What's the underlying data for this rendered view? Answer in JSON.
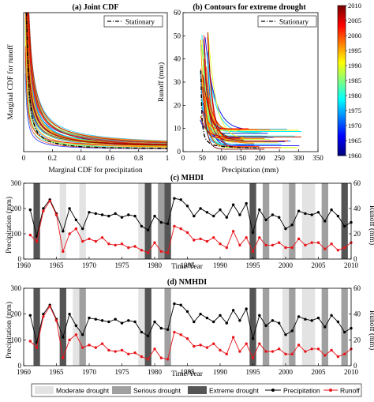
{
  "chart_data": [
    {
      "id": "a",
      "type": "line",
      "title": "(a) Joint CDF",
      "xlabel": "Marginal CDF for precipitation",
      "ylabel": "Marginal CDF for runoff",
      "xlim": [
        0,
        1
      ],
      "ylim": [
        0,
        1
      ],
      "xticks": [
        "0",
        "0.2",
        "0.4",
        "0.6",
        "0.8",
        "1"
      ],
      "yticks": [],
      "legend": {
        "position": "top-right",
        "entries": [
          "Stationary"
        ]
      },
      "series": [
        {
          "name": "Stationary",
          "style": "dash-dot",
          "x": [
            0.02,
            0.03,
            0.04,
            0.06,
            0.08,
            0.1,
            0.15,
            0.2,
            0.3,
            0.4,
            0.6,
            0.8,
            1.0
          ],
          "y": [
            1.0,
            0.62,
            0.4,
            0.24,
            0.17,
            0.13,
            0.085,
            0.065,
            0.045,
            0.035,
            0.028,
            0.025,
            0.024
          ]
        }
      ],
      "colormap_range": [
        1960,
        2010
      ],
      "curve_count": 50
    },
    {
      "id": "b",
      "type": "line",
      "title": "(b) Contours for extreme drought",
      "xlabel": "Precipitation (mm)",
      "ylabel": "Runoff (mm)",
      "xlim": [
        0,
        350
      ],
      "ylim": [
        0,
        60
      ],
      "xticks": [
        "0",
        "50",
        "100",
        "150",
        "200",
        "250",
        "300",
        "350"
      ],
      "yticks": [
        "0",
        "10",
        "20",
        "30",
        "40",
        "50",
        "60"
      ],
      "legend": {
        "position": "top-right",
        "entries": [
          "Stationary"
        ]
      },
      "series": [
        {
          "name": "Stationary",
          "style": "dash-dot",
          "x": [
            46,
            48,
            50,
            55,
            60,
            70,
            80,
            100,
            150,
            200
          ],
          "y": [
            35,
            20,
            12,
            7,
            5,
            3.5,
            2.8,
            2.2,
            1.8,
            1.6
          ]
        }
      ],
      "colorbar": {
        "min": 1960,
        "max": 2010,
        "ticks": [
          1960,
          1965,
          1970,
          1975,
          1980,
          1985,
          1990,
          1995,
          2000,
          2005,
          2010
        ]
      }
    },
    {
      "id": "c",
      "type": "line",
      "title": "(c) MHDI",
      "xlabel": "Time/Year",
      "ylabel": "Precipitation (mm)",
      "y2label": "Runoff (mm)",
      "xlim": [
        1960,
        2010
      ],
      "ylim": [
        0,
        300
      ],
      "y2lim": [
        0,
        60
      ],
      "xticks": [
        "1960",
        "1965",
        "1970",
        "1975",
        "1980",
        "1985",
        "1990",
        "1995",
        "2000",
        "2005",
        "2010"
      ],
      "yticks": [
        "0",
        "100",
        "200",
        "300"
      ],
      "y2ticks": [
        "0",
        "20",
        "40",
        "60"
      ],
      "drought_bands": [
        {
          "year": 1962,
          "level": "extreme"
        },
        {
          "year": 1966,
          "level": "moderate"
        },
        {
          "year": 1969,
          "level": "moderate"
        },
        {
          "year": 1978,
          "level": "moderate"
        },
        {
          "year": 1979,
          "level": "extreme"
        },
        {
          "year": 1981,
          "level": "serious"
        },
        {
          "year": 1982,
          "level": "extreme"
        },
        {
          "year": 1995,
          "level": "extreme"
        },
        {
          "year": 1997,
          "level": "serious"
        },
        {
          "year": 2000,
          "level": "moderate"
        },
        {
          "year": 2001,
          "level": "serious"
        },
        {
          "year": 2003,
          "level": "moderate"
        },
        {
          "year": 2004,
          "level": "moderate"
        },
        {
          "year": 2006,
          "level": "serious"
        },
        {
          "year": 2009,
          "level": "extreme"
        }
      ],
      "series": [
        {
          "name": "Precipitation",
          "axis": "left",
          "x": [
            1961,
            1962,
            1963,
            1964,
            1965,
            1966,
            1967,
            1968,
            1969,
            1970,
            1971,
            1972,
            1973,
            1974,
            1975,
            1976,
            1977,
            1978,
            1979,
            1980,
            1981,
            1982,
            1983,
            1984,
            1985,
            1986,
            1987,
            1988,
            1989,
            1990,
            1991,
            1992,
            1993,
            1994,
            1995,
            1996,
            1997,
            1998,
            1999,
            2000,
            2001,
            2002,
            2003,
            2004,
            2005,
            2006,
            2007,
            2008,
            2009,
            2010
          ],
          "y": [
            195,
            90,
            200,
            235,
            180,
            110,
            200,
            155,
            120,
            185,
            180,
            175,
            170,
            180,
            165,
            175,
            170,
            130,
            115,
            170,
            145,
            140,
            240,
            235,
            210,
            170,
            200,
            185,
            170,
            195,
            165,
            215,
            175,
            220,
            105,
            195,
            155,
            175,
            165,
            120,
            135,
            190,
            180,
            175,
            185,
            150,
            195,
            170,
            130,
            145
          ]
        },
        {
          "name": "Runoff",
          "axis": "right",
          "x": [
            1961,
            1962,
            1963,
            1964,
            1965,
            1966,
            1967,
            1968,
            1969,
            1970,
            1971,
            1972,
            1973,
            1974,
            1975,
            1976,
            1977,
            1978,
            1979,
            1980,
            1981,
            1982,
            1983,
            1984,
            1985,
            1986,
            1987,
            1988,
            1989,
            1990,
            1991,
            1992,
            1993,
            1994,
            1995,
            1996,
            1997,
            1998,
            1999,
            2000,
            2001,
            2002,
            2003,
            2004,
            2005,
            2006,
            2007,
            2008,
            2009,
            2010
          ],
          "y": [
            19,
            14,
            38,
            46,
            35,
            6,
            20,
            24,
            14,
            16,
            14,
            17,
            12,
            11,
            12,
            9,
            10,
            7,
            5,
            13,
            6,
            5,
            26,
            24,
            21,
            15,
            16,
            14,
            17,
            12,
            9,
            22,
            11,
            17,
            6,
            17,
            11,
            11,
            13,
            9,
            9,
            16,
            11,
            13,
            13,
            8,
            12,
            7,
            9,
            13
          ]
        }
      ]
    },
    {
      "id": "d",
      "type": "line",
      "title": "(d) NMHDI",
      "xlabel": "Time/Year",
      "ylabel": "Precipitation (mm)",
      "y2label": "Runoff (mm)",
      "xlim": [
        1960,
        2010
      ],
      "ylim": [
        0,
        300
      ],
      "y2lim": [
        0,
        60
      ],
      "xticks": [
        "1960",
        "1965",
        "1970",
        "1975",
        "1980",
        "1985",
        "1990",
        "1995",
        "2000",
        "2005",
        "2010"
      ],
      "yticks": [
        "0",
        "100",
        "200",
        "300"
      ],
      "y2ticks": [
        "0",
        "20",
        "40",
        "60"
      ],
      "drought_bands": [
        {
          "year": 1962,
          "level": "extreme"
        },
        {
          "year": 1966,
          "level": "extreme"
        },
        {
          "year": 1968,
          "level": "moderate"
        },
        {
          "year": 1969,
          "level": "serious"
        },
        {
          "year": 1978,
          "level": "moderate"
        },
        {
          "year": 1979,
          "level": "extreme"
        },
        {
          "year": 1982,
          "level": "serious"
        },
        {
          "year": 1995,
          "level": "extreme"
        },
        {
          "year": 1997,
          "level": "serious"
        },
        {
          "year": 2000,
          "level": "moderate"
        },
        {
          "year": 2001,
          "level": "serious"
        },
        {
          "year": 2003,
          "level": "moderate"
        },
        {
          "year": 2004,
          "level": "moderate"
        },
        {
          "year": 2006,
          "level": "serious"
        },
        {
          "year": 2009,
          "level": "serious"
        }
      ],
      "series": [
        {
          "name": "Precipitation",
          "axis": "left",
          "x": [
            1961,
            1962,
            1963,
            1964,
            1965,
            1966,
            1967,
            1968,
            1969,
            1970,
            1971,
            1972,
            1973,
            1974,
            1975,
            1976,
            1977,
            1978,
            1979,
            1980,
            1981,
            1982,
            1983,
            1984,
            1985,
            1986,
            1987,
            1988,
            1989,
            1990,
            1991,
            1992,
            1993,
            1994,
            1995,
            1996,
            1997,
            1998,
            1999,
            2000,
            2001,
            2002,
            2003,
            2004,
            2005,
            2006,
            2007,
            2008,
            2009,
            2010
          ],
          "y": [
            195,
            90,
            200,
            235,
            180,
            110,
            200,
            155,
            120,
            185,
            180,
            175,
            170,
            180,
            165,
            175,
            170,
            130,
            115,
            170,
            145,
            140,
            240,
            235,
            210,
            170,
            200,
            185,
            170,
            195,
            165,
            215,
            175,
            220,
            105,
            195,
            155,
            175,
            165,
            120,
            135,
            190,
            180,
            175,
            185,
            150,
            195,
            170,
            130,
            145
          ]
        },
        {
          "name": "Runoff",
          "axis": "right",
          "x": [
            1961,
            1962,
            1963,
            1964,
            1965,
            1966,
            1967,
            1968,
            1969,
            1970,
            1971,
            1972,
            1973,
            1974,
            1975,
            1976,
            1977,
            1978,
            1979,
            1980,
            1981,
            1982,
            1983,
            1984,
            1985,
            1986,
            1987,
            1988,
            1989,
            1990,
            1991,
            1992,
            1993,
            1994,
            1995,
            1996,
            1997,
            1998,
            1999,
            2000,
            2001,
            2002,
            2003,
            2004,
            2005,
            2006,
            2007,
            2008,
            2009,
            2010
          ],
          "y": [
            19,
            14,
            38,
            46,
            35,
            6,
            20,
            24,
            14,
            16,
            14,
            17,
            12,
            11,
            12,
            9,
            10,
            7,
            5,
            13,
            6,
            5,
            26,
            24,
            21,
            15,
            16,
            14,
            17,
            12,
            9,
            22,
            11,
            17,
            6,
            17,
            11,
            11,
            13,
            9,
            9,
            16,
            11,
            13,
            13,
            8,
            12,
            7,
            9,
            13
          ]
        }
      ]
    }
  ],
  "legend": {
    "moderate": "Moderate drought",
    "serious": "Serious drought",
    "extreme": "Extreme drought",
    "precip": "Precipitation",
    "runoff": "Runoff"
  },
  "colors": {
    "moderate": "#e3e3e3",
    "serious": "#a0a0a0",
    "extreme": "#555555",
    "precip": "#000000",
    "runoff": "#e8151b"
  }
}
